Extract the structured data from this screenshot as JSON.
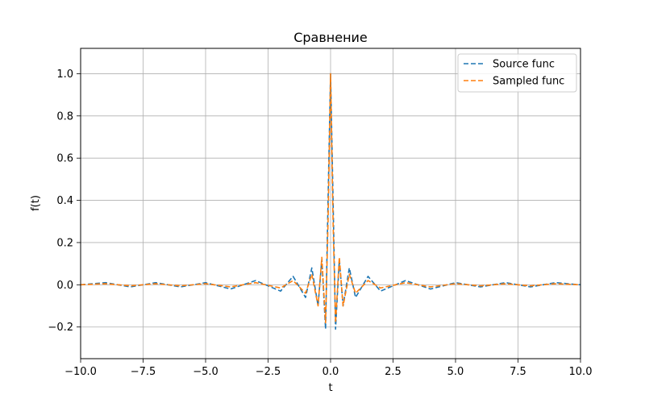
{
  "chart_data": {
    "type": "line",
    "title": "Сравнение",
    "xlabel": "t",
    "ylabel": "f(t)",
    "xlim": [
      -10,
      10
    ],
    "ylim": [
      -0.35,
      1.12
    ],
    "grid": true,
    "legend_position": "top-right",
    "xticks": [
      -10,
      -7.5,
      -5,
      -2.5,
      0,
      2.5,
      5,
      7.5,
      10
    ],
    "xtick_labels": [
      "−10.0",
      "−7.5",
      "−5.0",
      "−2.5",
      "0.0",
      "2.5",
      "5.0",
      "7.5",
      "10.0"
    ],
    "yticks": [
      -0.2,
      0,
      0.2,
      0.4,
      0.6,
      0.8,
      1.0
    ],
    "ytick_labels": [
      "−0.2",
      "0.0",
      "0.2",
      "0.4",
      "0.6",
      "0.8",
      "1.0"
    ],
    "series": [
      {
        "name": "Source func",
        "color": "#1f77b4",
        "x": [
          -10,
          -9,
          -8,
          -7,
          -6,
          -5,
          -4,
          -3,
          -2,
          -1.5,
          -1.0,
          -0.75,
          -0.5,
          -0.35,
          -0.2,
          -0.1,
          0,
          0.1,
          0.2,
          0.35,
          0.5,
          0.75,
          1.0,
          1.5,
          2,
          3,
          4,
          5,
          6,
          7,
          8,
          9,
          10
        ],
        "y": [
          0.0,
          0.01,
          -0.01,
          0.01,
          -0.01,
          0.01,
          -0.02,
          0.02,
          -0.03,
          0.04,
          -0.06,
          0.08,
          -0.1,
          0.12,
          -0.21,
          0.4,
          1.0,
          0.4,
          -0.21,
          0.12,
          -0.1,
          0.08,
          -0.06,
          0.04,
          -0.03,
          0.02,
          -0.02,
          0.01,
          -0.01,
          0.01,
          -0.01,
          0.01,
          0.0
        ]
      },
      {
        "name": "Sampled func",
        "color": "#ff7f0e",
        "x": [
          -10,
          -9,
          -8,
          -7,
          -6,
          -5,
          -4,
          -3,
          -2,
          -1.5,
          -1.0,
          -0.75,
          -0.5,
          -0.35,
          -0.2,
          -0.1,
          0,
          0.1,
          0.2,
          0.35,
          0.5,
          0.75,
          1.0,
          1.5,
          2,
          3,
          4,
          5,
          6,
          7,
          8,
          9,
          10
        ],
        "y": [
          0.0,
          0.005,
          -0.005,
          0.005,
          -0.005,
          0.005,
          -0.01,
          0.01,
          -0.015,
          0.02,
          -0.04,
          0.05,
          -0.1,
          0.13,
          -0.18,
          0.3,
          1.0,
          0.3,
          -0.18,
          0.13,
          -0.1,
          0.05,
          -0.04,
          0.02,
          -0.015,
          0.01,
          -0.01,
          0.005,
          -0.005,
          0.005,
          -0.005,
          0.005,
          0.0
        ]
      }
    ]
  }
}
